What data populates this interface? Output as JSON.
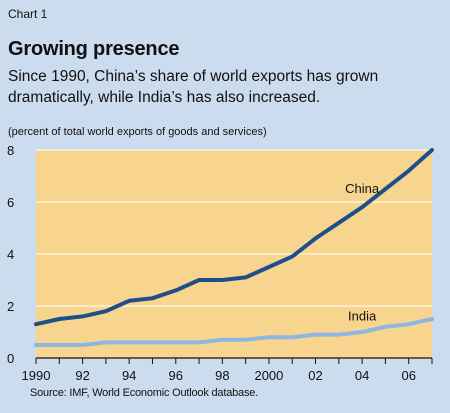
{
  "chart_data": {
    "type": "line",
    "chart_label": "Chart 1",
    "title": "Growing presence",
    "subtitle": "Since 1990, China’s share of world exports has grown dramatically, while India’s has also increased.",
    "unit_label": "(percent of total world exports of goods and services)",
    "source": "Source: IMF, World Economic Outlook database.",
    "x": [
      1990,
      1991,
      1992,
      1993,
      1994,
      1995,
      1996,
      1997,
      1998,
      1999,
      2000,
      2001,
      2002,
      2003,
      2004,
      2005,
      2006,
      2007
    ],
    "x_tick_values": [
      1990,
      1992,
      1994,
      1996,
      1998,
      2000,
      2002,
      2004,
      2006
    ],
    "x_tick_labels": [
      "1990",
      "92",
      "94",
      "96",
      "98",
      "2000",
      "02",
      "04",
      "06"
    ],
    "y_ticks": [
      0,
      2,
      4,
      6,
      8
    ],
    "xlim": [
      1990,
      2007
    ],
    "ylim": [
      0,
      8
    ],
    "grid": "horizontal",
    "series": [
      {
        "name": "China",
        "color": "#1f4f8a",
        "values": [
          1.3,
          1.5,
          1.6,
          1.8,
          2.2,
          2.3,
          2.6,
          3.0,
          3.0,
          3.1,
          3.5,
          3.9,
          4.6,
          5.2,
          5.8,
          6.5,
          7.2,
          8.0
        ]
      },
      {
        "name": "India",
        "color": "#8fb6e0",
        "values": [
          0.5,
          0.5,
          0.5,
          0.6,
          0.6,
          0.6,
          0.6,
          0.6,
          0.7,
          0.7,
          0.8,
          0.8,
          0.9,
          0.9,
          1.0,
          1.2,
          1.3,
          1.5
        ]
      }
    ],
    "colors": {
      "page_background": "#cbdcee",
      "plot_background": "#f8d58e",
      "gridline": "#ffffff"
    }
  }
}
